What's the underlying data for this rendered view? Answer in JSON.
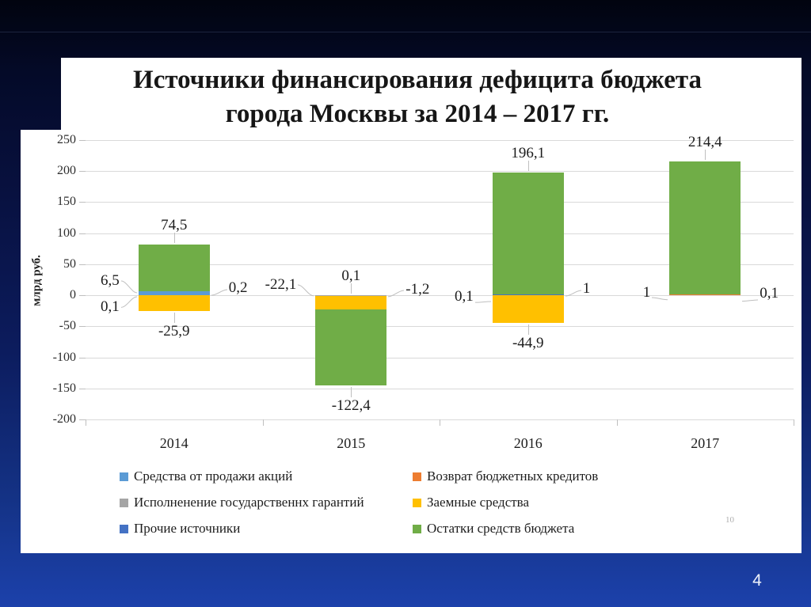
{
  "slide": {
    "page_number": "4",
    "watermark": "10"
  },
  "chart_data": {
    "type": "bar",
    "stacked": true,
    "title_line1": "Источники финансирования дефицита бюджета",
    "title_line2": "города Москвы за 2014 – 2017 гг.",
    "ylabel": "млрд руб.",
    "ylim": [
      -200,
      250
    ],
    "yticks": [
      250,
      200,
      150,
      100,
      50,
      0,
      -50,
      -100,
      -150,
      -200
    ],
    "grid": true,
    "legend_position": "bottom",
    "categories": [
      "2014",
      "2015",
      "2016",
      "2017"
    ],
    "series": [
      {
        "name": "Средства от продажи акций",
        "color": "#5b9bd5",
        "values": [
          6.5,
          0,
          0,
          0
        ]
      },
      {
        "name": "Возврат бюджетных кредитов",
        "color": "#ed7d31",
        "values": [
          0.1,
          0.1,
          0.1,
          1
        ]
      },
      {
        "name": "Исполненение государственнх гарантий",
        "color": "#a5a5a5",
        "values": [
          0.2,
          -1.2,
          0,
          0
        ]
      },
      {
        "name": "Заемные средства",
        "color": "#ffc000",
        "values": [
          -25.9,
          -22.1,
          -44.9,
          0.1
        ]
      },
      {
        "name": "Прочие источники",
        "color": "#4472c4",
        "values": [
          0,
          0,
          1,
          0
        ]
      },
      {
        "name": "Остатки средств бюджета",
        "color": "#70ad47",
        "values": [
          74.5,
          -122.4,
          196.1,
          214.4
        ]
      }
    ],
    "legend_columns": [
      [
        0,
        2,
        4
      ],
      [
        1,
        3,
        5
      ]
    ],
    "annotations": [
      {
        "category": "2014",
        "items": [
          {
            "text": "74,5",
            "side": "above",
            "v": 81.4
          },
          {
            "text": "6,5",
            "side": "left",
            "v": 23,
            "tv": 4
          },
          {
            "text": "0,1",
            "side": "left",
            "v": -19,
            "tv": -2
          },
          {
            "text": "0,2",
            "side": "right",
            "v": 11,
            "tv": 2
          },
          {
            "text": "-25,9",
            "side": "below",
            "v": -25.9
          }
        ]
      },
      {
        "category": "2015",
        "items": [
          {
            "text": "-22,1",
            "side": "left",
            "v": 17,
            "tv": -0.5
          },
          {
            "text": "0,1",
            "side": "above",
            "v": 0
          },
          {
            "text": "-1,2",
            "side": "right",
            "v": 9,
            "tv": -1
          },
          {
            "text": "-122,4",
            "side": "below",
            "v": -145.7
          }
        ]
      },
      {
        "category": "2016",
        "items": [
          {
            "text": "196,1",
            "side": "above",
            "v": 197.2
          },
          {
            "text": "0,1",
            "side": "left",
            "v": -2,
            "tv": -0.5
          },
          {
            "text": "1",
            "side": "right",
            "v": 10,
            "tv": 1
          },
          {
            "text": "-44,9",
            "side": "below",
            "v": -44.9
          }
        ]
      },
      {
        "category": "2017",
        "items": [
          {
            "text": "214,4",
            "side": "above",
            "v": 215.5
          },
          {
            "text": "1",
            "side": "left",
            "v": 4,
            "tv": 0.5
          },
          {
            "text": "0,1",
            "side": "right",
            "v": 2.5,
            "tv": 0.5
          }
        ]
      }
    ]
  }
}
